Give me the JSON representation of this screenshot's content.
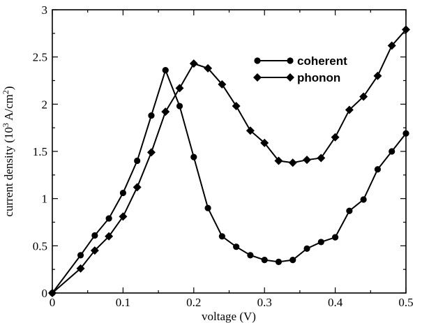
{
  "chart_data": {
    "type": "line",
    "title": "",
    "xlabel": "voltage (V)",
    "ylabel": {
      "prefix": "current density (10",
      "sup1": "3",
      "mid": " A/cm",
      "sup2": "2",
      "suffix": ")"
    },
    "xlim": [
      0,
      0.5
    ],
    "ylim": [
      0,
      3
    ],
    "x_ticks": [
      0,
      0.1,
      0.2,
      0.3,
      0.4,
      0.5
    ],
    "x_tick_labels": [
      "0",
      "0.1",
      "0.2",
      "0.3",
      "0.4",
      "0.5"
    ],
    "y_ticks": [
      0,
      0.5,
      1,
      1.5,
      2,
      2.5,
      3
    ],
    "y_tick_labels": [
      "0",
      "0.5",
      "1",
      "1.5",
      "2",
      "2.5",
      "3"
    ],
    "grid": false,
    "legend_position": "top-right",
    "series": [
      {
        "name": "coherent",
        "marker": "circle",
        "color": "#000000",
        "x": [
          0,
          0.04,
          0.06,
          0.08,
          0.1,
          0.12,
          0.14,
          0.16,
          0.18,
          0.2,
          0.22,
          0.24,
          0.26,
          0.28,
          0.3,
          0.32,
          0.34,
          0.36,
          0.38,
          0.4,
          0.42,
          0.44,
          0.46,
          0.48,
          0.5
        ],
        "y": [
          0,
          0.4,
          0.61,
          0.79,
          1.06,
          1.4,
          1.88,
          2.36,
          1.98,
          1.44,
          0.9,
          0.6,
          0.49,
          0.4,
          0.35,
          0.33,
          0.35,
          0.47,
          0.54,
          0.59,
          0.87,
          0.99,
          1.31,
          1.5,
          1.69
        ]
      },
      {
        "name": "phonon",
        "marker": "diamond",
        "color": "#000000",
        "x": [
          0,
          0.04,
          0.06,
          0.08,
          0.1,
          0.12,
          0.14,
          0.16,
          0.18,
          0.2,
          0.22,
          0.24,
          0.26,
          0.28,
          0.3,
          0.32,
          0.34,
          0.36,
          0.38,
          0.4,
          0.42,
          0.44,
          0.46,
          0.48,
          0.5
        ],
        "y": [
          0,
          0.26,
          0.45,
          0.6,
          0.81,
          1.12,
          1.49,
          1.92,
          2.17,
          2.43,
          2.38,
          2.21,
          1.98,
          1.72,
          1.59,
          1.4,
          1.38,
          1.41,
          1.43,
          1.65,
          1.94,
          2.08,
          2.3,
          2.62,
          2.79
        ]
      }
    ]
  }
}
